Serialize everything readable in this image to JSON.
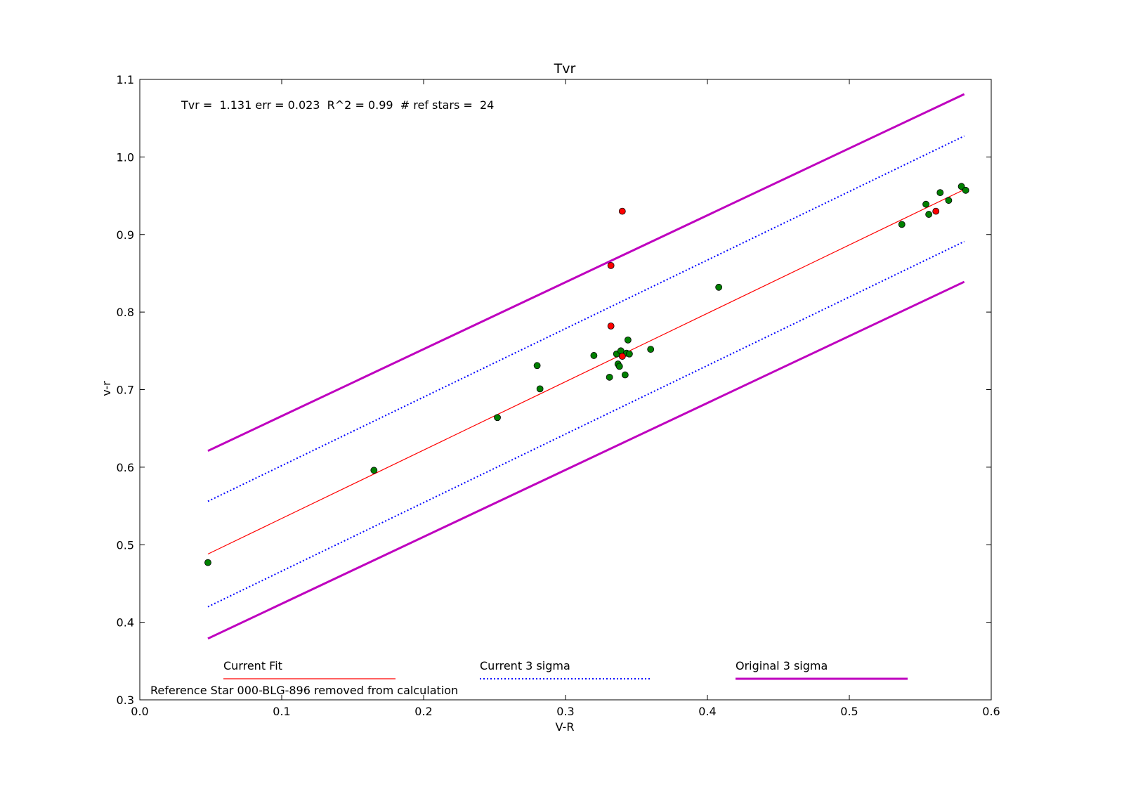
{
  "chart_data": {
    "type": "scatter",
    "title": "Tvr",
    "xlabel": "V-R",
    "ylabel": "v-r",
    "xlim": [
      0.0,
      0.6
    ],
    "ylim": [
      0.3,
      1.1
    ],
    "xticks": [
      0.0,
      0.1,
      0.2,
      0.3,
      0.4,
      0.5,
      0.6
    ],
    "xtick_labels": [
      "0.0",
      "0.1",
      "0.2",
      "0.3",
      "0.4",
      "0.5",
      "0.6"
    ],
    "yticks": [
      0.3,
      0.4,
      0.5,
      0.6,
      0.7,
      0.8,
      0.9,
      1.0,
      1.1
    ],
    "ytick_labels": [
      "0.3",
      "0.4",
      "0.5",
      "0.6",
      "0.7",
      "0.8",
      "0.9",
      "1.0",
      "1.1"
    ],
    "grid": false,
    "stats_text": "Tvr =  1.131 err = 0.023  R^2 = 0.99  # ref stars =  24",
    "footnote": "Reference Star 000-BLG-896 removed from calculation",
    "colors": {
      "fit": "#ff0000",
      "current_sigma": "#0000ff",
      "original_sigma": "#bf00bf",
      "included": "#008000",
      "removed": "#ff0000"
    },
    "lines": [
      {
        "name": "Current Fit",
        "style": "solid",
        "color": "#ff0000",
        "x": [
          0.048,
          0.581
        ],
        "y": [
          0.488,
          0.958
        ]
      },
      {
        "name": "Current 3 sigma",
        "style": "dotted",
        "color": "#0000ff",
        "x": [
          0.048,
          0.581
        ],
        "y": [
          0.556,
          1.027
        ]
      },
      {
        "name": "Current 3 sigma",
        "style": "dotted",
        "color": "#0000ff",
        "x": [
          0.048,
          0.581
        ],
        "y": [
          0.42,
          0.891
        ]
      },
      {
        "name": "Original 3 sigma",
        "style": "thick",
        "color": "#bf00bf",
        "x": [
          0.048,
          0.581
        ],
        "y": [
          0.621,
          1.081
        ]
      },
      {
        "name": "Original 3 sigma",
        "style": "thick",
        "color": "#bf00bf",
        "x": [
          0.048,
          0.581
        ],
        "y": [
          0.379,
          0.839
        ]
      }
    ],
    "legend": [
      {
        "label": "Current Fit",
        "style": "solid",
        "color": "#ff0000"
      },
      {
        "label": "Current 3 sigma",
        "style": "dotted",
        "color": "#0000ff"
      },
      {
        "label": "Original 3 sigma",
        "style": "thick",
        "color": "#bf00bf"
      }
    ],
    "series": [
      {
        "color": "#008000",
        "points": [
          [
            0.048,
            0.477
          ],
          [
            0.165,
            0.596
          ],
          [
            0.252,
            0.664
          ],
          [
            0.28,
            0.731
          ],
          [
            0.282,
            0.701
          ],
          [
            0.32,
            0.744
          ],
          [
            0.331,
            0.716
          ],
          [
            0.336,
            0.746
          ],
          [
            0.337,
            0.733
          ],
          [
            0.338,
            0.73
          ],
          [
            0.339,
            0.75
          ],
          [
            0.342,
            0.719
          ],
          [
            0.343,
            0.747
          ],
          [
            0.344,
            0.764
          ],
          [
            0.345,
            0.746
          ],
          [
            0.36,
            0.752
          ],
          [
            0.408,
            0.832
          ],
          [
            0.537,
            0.913
          ],
          [
            0.554,
            0.939
          ],
          [
            0.556,
            0.926
          ],
          [
            0.564,
            0.954
          ],
          [
            0.57,
            0.944
          ],
          [
            0.579,
            0.962
          ],
          [
            0.582,
            0.957
          ]
        ]
      },
      {
        "color": "#ff0000",
        "points": [
          [
            0.332,
            0.86
          ],
          [
            0.34,
            0.93
          ],
          [
            0.332,
            0.782
          ],
          [
            0.34,
            0.743
          ],
          [
            0.561,
            0.93
          ]
        ]
      }
    ]
  }
}
